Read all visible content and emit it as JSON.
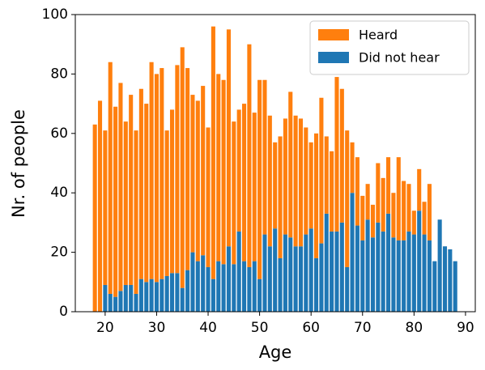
{
  "chart_data": {
    "type": "bar",
    "stacked": true,
    "xlabel": "Age",
    "ylabel": "Nr. of people",
    "x": [
      18,
      19,
      20,
      21,
      22,
      23,
      24,
      25,
      26,
      27,
      28,
      29,
      30,
      31,
      32,
      33,
      34,
      35,
      36,
      37,
      38,
      39,
      40,
      41,
      42,
      43,
      44,
      45,
      46,
      47,
      48,
      49,
      50,
      51,
      52,
      53,
      54,
      55,
      56,
      57,
      58,
      59,
      60,
      61,
      62,
      63,
      64,
      65,
      66,
      67,
      68,
      69,
      70,
      71,
      72,
      73,
      74,
      75,
      76,
      77,
      78,
      79,
      80,
      81,
      82,
      83,
      84,
      85,
      86,
      87,
      88
    ],
    "series": [
      {
        "name": "Heard",
        "color": "#ff7f0e",
        "values": [
          63,
          71,
          52,
          78,
          64,
          70,
          55,
          64,
          55,
          64,
          60,
          73,
          70,
          71,
          49,
          55,
          70,
          81,
          68,
          53,
          54,
          57,
          47,
          85,
          63,
          62,
          73,
          48,
          41,
          53,
          75,
          50,
          67,
          52,
          44,
          29,
          41,
          39,
          49,
          44,
          43,
          36,
          29,
          42,
          49,
          26,
          27,
          52,
          45,
          46,
          17,
          23,
          15,
          12,
          11,
          20,
          18,
          19,
          15,
          28,
          20,
          16,
          8,
          14,
          11,
          19,
          0,
          0,
          0,
          0,
          0
        ]
      },
      {
        "name": "Did not hear",
        "color": "#1f77b4",
        "values": [
          0,
          0,
          9,
          6,
          5,
          7,
          9,
          9,
          6,
          11,
          10,
          11,
          10,
          11,
          12,
          13,
          13,
          8,
          14,
          20,
          17,
          19,
          15,
          11,
          17,
          16,
          22,
          16,
          27,
          17,
          15,
          17,
          11,
          26,
          22,
          28,
          18,
          26,
          25,
          22,
          22,
          26,
          28,
          18,
          23,
          33,
          27,
          27,
          30,
          15,
          40,
          29,
          24,
          31,
          25,
          30,
          27,
          33,
          25,
          24,
          24,
          27,
          26,
          34,
          26,
          24,
          17,
          31,
          22,
          21,
          17
        ]
      }
    ],
    "xlim": [
      14.2,
      91.9
    ],
    "xticks": [
      20,
      30,
      40,
      50,
      60,
      70,
      80,
      90
    ],
    "ylim": [
      0,
      100
    ],
    "yticks": [
      0,
      20,
      40,
      60,
      80,
      100
    ],
    "legend": "upper right"
  }
}
